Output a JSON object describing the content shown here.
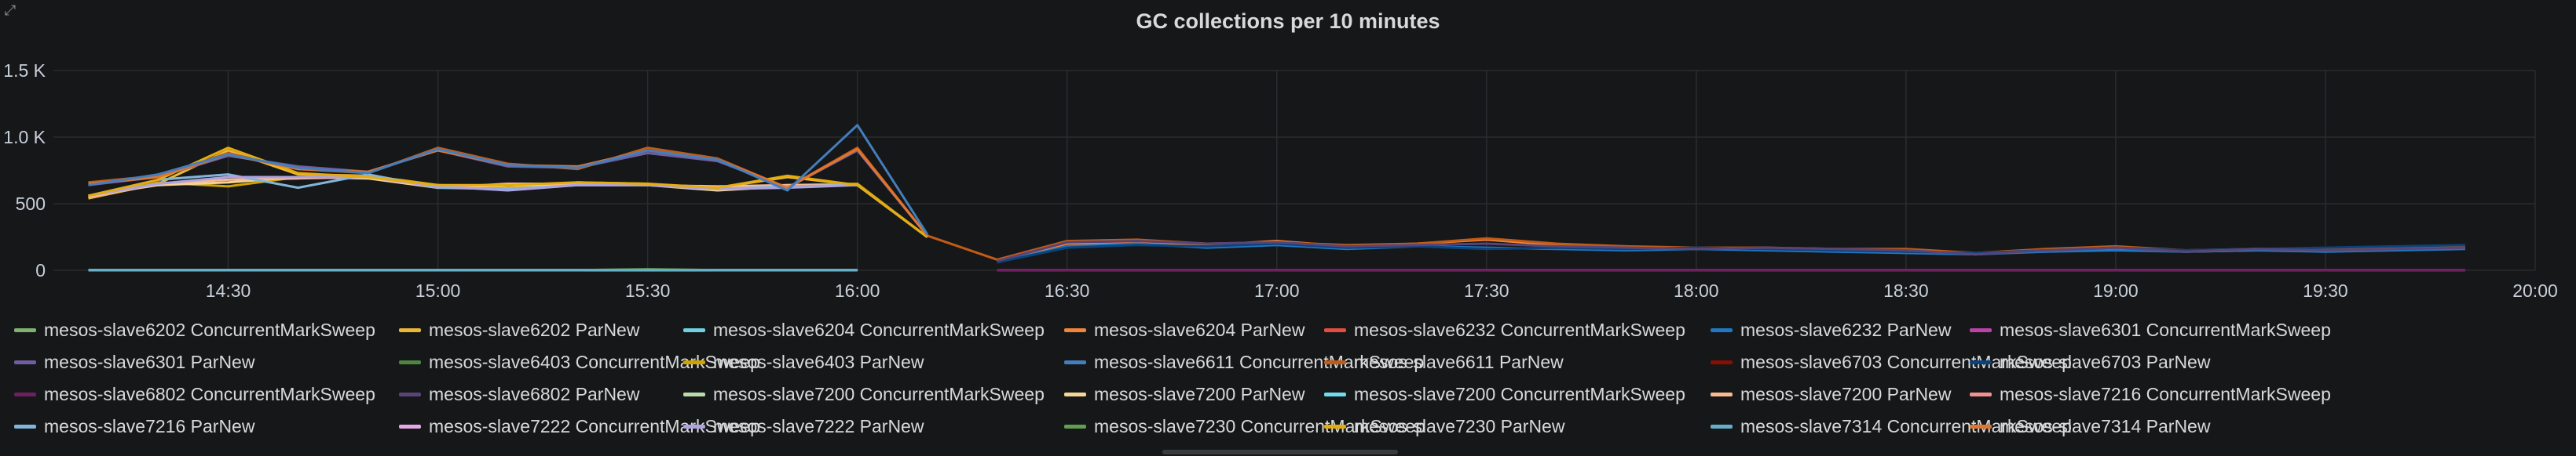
{
  "panel": {
    "title": "GC collections per 10 minutes",
    "corner_icon": "expand-icon"
  },
  "chart_data": {
    "type": "line",
    "title": "GC collections per 10 minutes",
    "xlabel": "",
    "ylabel": "",
    "grid": true,
    "legend_position": "bottom",
    "x_ticks": [
      "14:30",
      "15:00",
      "15:30",
      "16:00",
      "16:30",
      "17:00",
      "17:30",
      "18:00",
      "18:30",
      "19:00",
      "19:30",
      "20:00"
    ],
    "y_ticks": [
      "0",
      "500",
      "1.0 K",
      "1.5 K"
    ],
    "ylim": [
      0,
      1500
    ],
    "xlim": [
      "14:05",
      "20:00"
    ],
    "x": [
      "14:10",
      "14:20",
      "14:30",
      "14:40",
      "14:50",
      "15:00",
      "15:10",
      "15:20",
      "15:30",
      "15:40",
      "15:50",
      "16:00",
      "16:10",
      "16:20",
      "16:30",
      "16:40",
      "16:50",
      "17:00",
      "17:10",
      "17:20",
      "17:30",
      "17:40",
      "17:50",
      "18:00",
      "18:10",
      "18:20",
      "18:30",
      "18:40",
      "18:50",
      "19:00",
      "19:10",
      "19:20",
      "19:30",
      "19:40",
      "19:50"
    ],
    "series": [
      {
        "name": "mesos-slave6202 ConcurrentMarkSweep",
        "color": "#7eb26d",
        "values": [
          2,
          2,
          2,
          2,
          2,
          2,
          2,
          2,
          2,
          2,
          2,
          2,
          null,
          2,
          2,
          2,
          2,
          2,
          2,
          2,
          2,
          2,
          2,
          2,
          2,
          2,
          2,
          2,
          2,
          2,
          2,
          2,
          2,
          2,
          2
        ]
      },
      {
        "name": "mesos-slave6202 ParNew",
        "color": "#eab839",
        "values": [
          540,
          650,
          900,
          720,
          710,
          640,
          620,
          650,
          640,
          620,
          700,
          640,
          250,
          null,
          null,
          null,
          null,
          null,
          null,
          null,
          null,
          null,
          null,
          null,
          null,
          null,
          null,
          null,
          null,
          null,
          null,
          null,
          null,
          null,
          null
        ]
      },
      {
        "name": "mesos-slave6204 ConcurrentMarkSweep",
        "color": "#6ed0e0",
        "values": [
          2,
          2,
          2,
          2,
          2,
          2,
          2,
          2,
          2,
          2,
          2,
          2,
          null,
          2,
          2,
          2,
          2,
          2,
          2,
          2,
          2,
          2,
          2,
          2,
          2,
          2,
          2,
          2,
          2,
          2,
          2,
          2,
          2,
          2,
          2
        ]
      },
      {
        "name": "mesos-slave6204 ParNew",
        "color": "#ef843c",
        "values": [
          null,
          null,
          null,
          null,
          null,
          null,
          null,
          null,
          null,
          null,
          null,
          null,
          null,
          70,
          200,
          210,
          190,
          220,
          180,
          200,
          230,
          190,
          170,
          160,
          170,
          150,
          140,
          120,
          150,
          160,
          140,
          150,
          150,
          160,
          170
        ]
      },
      {
        "name": "mesos-slave6232 ConcurrentMarkSweep",
        "color": "#e24d42",
        "values": [
          2,
          2,
          2,
          2,
          2,
          2,
          2,
          2,
          2,
          2,
          2,
          2,
          null,
          2,
          2,
          2,
          2,
          2,
          2,
          2,
          2,
          2,
          2,
          2,
          2,
          2,
          2,
          2,
          2,
          2,
          2,
          2,
          2,
          2,
          2
        ]
      },
      {
        "name": "mesos-slave6232 ParNew",
        "color": "#1f78c1",
        "values": [
          null,
          null,
          null,
          null,
          null,
          null,
          null,
          null,
          null,
          null,
          null,
          null,
          null,
          60,
          180,
          200,
          170,
          190,
          160,
          180,
          170,
          160,
          150,
          160,
          150,
          140,
          130,
          120,
          140,
          150,
          140,
          150,
          140,
          150,
          160
        ]
      },
      {
        "name": "mesos-slave6301 ConcurrentMarkSweep",
        "color": "#ba43a9",
        "values": [
          null,
          null,
          null,
          null,
          null,
          null,
          null,
          null,
          null,
          null,
          null,
          null,
          null,
          2,
          2,
          2,
          2,
          2,
          2,
          2,
          2,
          2,
          2,
          2,
          2,
          2,
          2,
          2,
          2,
          2,
          2,
          2,
          2,
          2,
          2
        ]
      },
      {
        "name": "mesos-slave6301 ParNew",
        "color": "#705da0",
        "values": [
          640,
          700,
          860,
          780,
          740,
          900,
          780,
          770,
          880,
          820,
          620,
          900,
          260,
          null,
          null,
          null,
          null,
          null,
          null,
          null,
          null,
          null,
          null,
          null,
          null,
          null,
          null,
          null,
          null,
          null,
          null,
          null,
          null,
          null,
          null
        ]
      },
      {
        "name": "mesos-slave6403 ConcurrentMarkSweep",
        "color": "#508642",
        "values": [
          2,
          2,
          2,
          2,
          2,
          2,
          2,
          2,
          2,
          2,
          2,
          2,
          null,
          2,
          2,
          2,
          2,
          2,
          2,
          2,
          2,
          2,
          2,
          2,
          2,
          2,
          2,
          2,
          2,
          2,
          2,
          2,
          2,
          2,
          2
        ]
      },
      {
        "name": "mesos-slave6403 ParNew",
        "color": "#cca300",
        "values": [
          550,
          660,
          630,
          700,
          710,
          640,
          610,
          660,
          650,
          610,
          640,
          650,
          250,
          null,
          null,
          null,
          null,
          null,
          null,
          null,
          null,
          null,
          null,
          null,
          null,
          null,
          null,
          null,
          null,
          null,
          null,
          null,
          null,
          null,
          null
        ]
      },
      {
        "name": "mesos-slave6611 ConcurrentMarkSweep",
        "color": "#447ebc",
        "values": [
          2,
          2,
          2,
          2,
          2,
          2,
          2,
          2,
          2,
          2,
          2,
          2,
          null,
          2,
          2,
          2,
          2,
          2,
          2,
          2,
          2,
          2,
          2,
          2,
          2,
          2,
          2,
          2,
          2,
          2,
          2,
          2,
          2,
          2,
          2
        ]
      },
      {
        "name": "mesos-slave6611 ParNew",
        "color": "#c15c17",
        "values": [
          660,
          710,
          880,
          760,
          730,
          920,
          800,
          760,
          920,
          840,
          620,
          920,
          260,
          80,
          220,
          230,
          200,
          210,
          190,
          200,
          240,
          200,
          180,
          170,
          170,
          160,
          160,
          130,
          160,
          180,
          150,
          160,
          160,
          170,
          180
        ]
      },
      {
        "name": "mesos-slave6703 ConcurrentMarkSweep",
        "color": "#890f02",
        "values": [
          null,
          null,
          null,
          null,
          null,
          null,
          null,
          null,
          null,
          null,
          null,
          null,
          null,
          2,
          2,
          2,
          2,
          2,
          2,
          2,
          2,
          2,
          2,
          2,
          2,
          2,
          2,
          2,
          2,
          2,
          2,
          2,
          2,
          2,
          2
        ]
      },
      {
        "name": "mesos-slave6703 ParNew",
        "color": "#0a437c",
        "values": [
          null,
          null,
          null,
          null,
          null,
          null,
          null,
          null,
          null,
          null,
          null,
          null,
          null,
          60,
          170,
          190,
          180,
          200,
          170,
          180,
          160,
          170,
          160,
          170,
          160,
          150,
          140,
          130,
          150,
          170,
          150,
          160,
          170,
          180,
          190
        ]
      },
      {
        "name": "mesos-slave6802 ConcurrentMarkSweep",
        "color": "#6d1f62",
        "values": [
          null,
          null,
          null,
          null,
          null,
          null,
          null,
          null,
          null,
          null,
          null,
          null,
          null,
          2,
          2,
          2,
          2,
          2,
          2,
          2,
          2,
          2,
          2,
          2,
          2,
          2,
          2,
          2,
          2,
          2,
          2,
          2,
          2,
          2,
          2
        ]
      },
      {
        "name": "mesos-slave6802 ParNew",
        "color": "#584477",
        "values": [
          null,
          null,
          null,
          null,
          null,
          null,
          null,
          null,
          null,
          null,
          null,
          null,
          null,
          70,
          210,
          220,
          200,
          210,
          180,
          190,
          200,
          180,
          170,
          160,
          170,
          160,
          150,
          120,
          150,
          170,
          140,
          160,
          150,
          160,
          170
        ]
      },
      {
        "name": "mesos-slave7200 ConcurrentMarkSweep",
        "color": "#b7dbab",
        "values": [
          2,
          2,
          2,
          2,
          2,
          2,
          2,
          2,
          2,
          2,
          2,
          2,
          null,
          null,
          null,
          null,
          null,
          null,
          null,
          null,
          null,
          null,
          null,
          null,
          null,
          null,
          null,
          null,
          null,
          null,
          null,
          null,
          null,
          null,
          null
        ]
      },
      {
        "name": "mesos-slave7200 ParNew",
        "color": "#f4d598",
        "values": [
          560,
          640,
          660,
          700,
          690,
          620,
          640,
          640,
          640,
          600,
          630,
          640,
          250,
          null,
          null,
          null,
          null,
          null,
          null,
          null,
          null,
          null,
          null,
          null,
          null,
          null,
          null,
          null,
          null,
          null,
          null,
          null,
          null,
          null,
          null
        ]
      },
      {
        "name": "mesos-slave7200 ConcurrentMarkSweep",
        "color": "#70dbed",
        "values": [
          2,
          2,
          2,
          2,
          2,
          2,
          2,
          2,
          2,
          2,
          2,
          2,
          null,
          null,
          null,
          null,
          null,
          null,
          null,
          null,
          null,
          null,
          null,
          null,
          null,
          null,
          null,
          null,
          null,
          null,
          null,
          null,
          null,
          null,
          null
        ]
      },
      {
        "name": "mesos-slave7200 ParNew",
        "color": "#f9ba8f",
        "values": [
          550,
          650,
          680,
          690,
          700,
          620,
          650,
          650,
          640,
          630,
          640,
          640,
          250,
          null,
          null,
          null,
          null,
          null,
          null,
          null,
          null,
          null,
          null,
          null,
          null,
          null,
          null,
          null,
          null,
          null,
          null,
          null,
          null,
          null,
          null
        ]
      },
      {
        "name": "mesos-slave7216 ConcurrentMarkSweep",
        "color": "#f29191",
        "values": [
          2,
          2,
          2,
          2,
          2,
          2,
          2,
          2,
          2,
          2,
          2,
          2,
          null,
          null,
          null,
          null,
          null,
          null,
          null,
          null,
          null,
          null,
          null,
          null,
          null,
          null,
          null,
          null,
          null,
          null,
          null,
          null,
          null,
          null,
          null
        ]
      },
      {
        "name": "mesos-slave7216 ParNew",
        "color": "#82b5d8",
        "values": [
          560,
          680,
          720,
          620,
          720,
          620,
          610,
          640,
          640,
          610,
          630,
          640,
          250,
          null,
          null,
          null,
          null,
          null,
          null,
          null,
          null,
          null,
          null,
          null,
          null,
          null,
          null,
          null,
          null,
          null,
          null,
          null,
          null,
          null,
          null
        ]
      },
      {
        "name": "mesos-slave7222 ConcurrentMarkSweep",
        "color": "#e5a8e2",
        "values": [
          2,
          2,
          2,
          2,
          2,
          2,
          2,
          2,
          2,
          2,
          2,
          2,
          null,
          null,
          null,
          null,
          null,
          null,
          null,
          null,
          null,
          null,
          null,
          null,
          null,
          null,
          null,
          null,
          null,
          null,
          null,
          null,
          null,
          null,
          null
        ]
      },
      {
        "name": "mesos-slave7222 ParNew",
        "color": "#aea2e0",
        "values": [
          560,
          650,
          700,
          700,
          700,
          630,
          600,
          640,
          640,
          610,
          620,
          640,
          250,
          null,
          null,
          null,
          null,
          null,
          null,
          null,
          null,
          null,
          null,
          null,
          null,
          null,
          null,
          null,
          null,
          null,
          null,
          null,
          null,
          null,
          null
        ]
      },
      {
        "name": "mesos-slave7230 ConcurrentMarkSweep",
        "color": "#629e51",
        "values": [
          2,
          2,
          2,
          2,
          2,
          2,
          2,
          2,
          8,
          2,
          2,
          2,
          null,
          null,
          null,
          null,
          null,
          null,
          null,
          null,
          null,
          null,
          null,
          null,
          null,
          null,
          null,
          null,
          null,
          null,
          null,
          null,
          null,
          null,
          null
        ]
      },
      {
        "name": "mesos-slave7230 ParNew",
        "color": "#e5ac0e",
        "values": [
          560,
          680,
          920,
          730,
          700,
          640,
          640,
          660,
          650,
          620,
          710,
          640,
          250,
          null,
          null,
          null,
          null,
          null,
          null,
          null,
          null,
          null,
          null,
          null,
          null,
          null,
          null,
          null,
          null,
          null,
          null,
          null,
          null,
          null,
          null
        ]
      },
      {
        "name": "mesos-slave7314 ConcurrentMarkSweep",
        "color": "#64b0c8",
        "values": [
          2,
          2,
          2,
          2,
          2,
          2,
          2,
          2,
          2,
          2,
          2,
          2,
          null,
          null,
          null,
          null,
          null,
          null,
          null,
          null,
          null,
          null,
          null,
          null,
          null,
          null,
          null,
          null,
          null,
          null,
          null,
          null,
          null,
          null,
          null
        ]
      },
      {
        "name": "mesos-slave7314 ParNew",
        "color": "#e0752d",
        "values": [
          650,
          700,
          870,
          760,
          740,
          900,
          790,
          780,
          900,
          830,
          620,
          910,
          260,
          null,
          null,
          null,
          null,
          null,
          null,
          null,
          null,
          null,
          null,
          null,
          null,
          null,
          null,
          null,
          null,
          null,
          null,
          null,
          null,
          null,
          null
        ]
      },
      {
        "name": "mesos-slave6611 ParNew",
        "color": "#447ebc",
        "hidden_in_legend": true,
        "values": [
          640,
          720,
          870,
          770,
          730,
          910,
          790,
          770,
          900,
          830,
          600,
          1090,
          270,
          null,
          null,
          null,
          null,
          null,
          null,
          null,
          null,
          null,
          null,
          null,
          null,
          null,
          null,
          null,
          null,
          null,
          null,
          null,
          null,
          null,
          null
        ]
      }
    ]
  }
}
